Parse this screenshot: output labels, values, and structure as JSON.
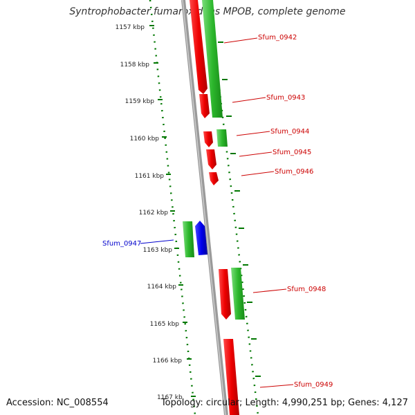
{
  "title": "Syntrophobacter fumaroxidans MPOB, complete genome",
  "accession": "Accession: NC_008554",
  "summary": "Topology: circular; Length: 4,990,251 bp; Genes: 4,127",
  "colors": {
    "forward_strand": "#22aa22",
    "reverse_strand": "#dd0000",
    "selected_gene": "#0000dd",
    "backbone": "#888888",
    "tick": "#007700",
    "label_red": "#cc0000",
    "label_blue": "#0000cc"
  },
  "ticks": [
    "1157 kbp",
    "1158 kbp",
    "1159 kbp",
    "1160 kbp",
    "1161 kbp",
    "1162 kbp",
    "1163 kbp",
    "1164 kbp",
    "1165 kbp",
    "1166 kbp",
    "1167 kb"
  ],
  "gene_labels": [
    {
      "name": "Sfum_0942",
      "color": "red"
    },
    {
      "name": "Sfum_0943",
      "color": "red"
    },
    {
      "name": "Sfum_0944",
      "color": "red"
    },
    {
      "name": "Sfum_0945",
      "color": "red"
    },
    {
      "name": "Sfum_0946",
      "color": "red"
    },
    {
      "name": "Sfum_0947",
      "color": "blue"
    },
    {
      "name": "Sfum_0948",
      "color": "red"
    },
    {
      "name": "Sfum_0949",
      "color": "red"
    }
  ]
}
